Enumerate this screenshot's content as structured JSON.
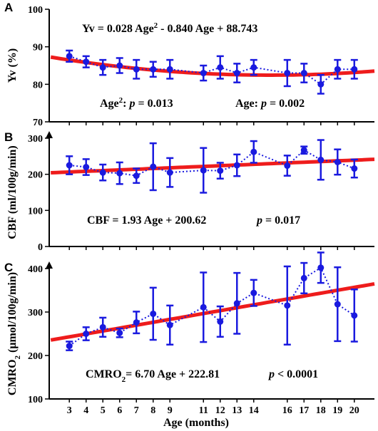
{
  "chart_data": [
    {
      "panel": "A",
      "type": "line",
      "ylabel": "Yv (%)",
      "ylim": [
        70,
        100
      ],
      "yticks": [
        70,
        80,
        90,
        100
      ],
      "x": [
        3,
        4,
        5,
        6,
        7,
        8,
        9,
        11,
        12,
        13,
        14,
        16,
        17,
        18,
        19,
        20
      ],
      "values": [
        87.5,
        86,
        84.5,
        85,
        84,
        84,
        84,
        83,
        84.5,
        83,
        84.5,
        83,
        83,
        80,
        84,
        84
      ],
      "err": [
        1.5,
        1.5,
        2,
        2,
        2.5,
        2,
        2.5,
        2,
        3,
        2.5,
        2,
        3.5,
        2.5,
        2.5,
        2.5,
        2.5
      ],
      "fit": {
        "a": 0.028,
        "b": -0.84,
        "c": 88.743
      },
      "equation_lines": [
        {
          "parts": [
            {
              "t": "Yv = 0.028 Age"
            },
            {
              "t": "2",
              "sup": true
            },
            {
              "t": " - 0.840 Age + 88.743"
            }
          ]
        },
        {
          "parts": [
            {
              "t": "Age"
            },
            {
              "t": "2",
              "sup": true
            },
            {
              "t": ": "
            },
            {
              "t": "p",
              "italic": true
            },
            {
              "t": " = 0.013"
            }
          ]
        },
        {
          "parts": [
            {
              "t": "Age: "
            },
            {
              "t": "p",
              "italic": true
            },
            {
              "t": " = 0.002"
            }
          ]
        }
      ]
    },
    {
      "panel": "B",
      "type": "line",
      "ylabel": "CBF (ml/100g/min)",
      "ylim": [
        0,
        300
      ],
      "yticks": [
        0,
        100,
        200,
        300
      ],
      "x": [
        3,
        4,
        5,
        6,
        7,
        8,
        9,
        11,
        12,
        13,
        14,
        16,
        17,
        18,
        19,
        20
      ],
      "values": [
        225,
        220,
        205,
        203,
        196,
        221,
        205,
        211,
        210,
        225,
        262,
        224,
        267,
        240,
        234,
        216
      ],
      "err": [
        25,
        22,
        22,
        30,
        20,
        65,
        40,
        62,
        22,
        30,
        30,
        28,
        10,
        55,
        35,
        25
      ],
      "fit": {
        "slope": 1.93,
        "intercept": 200.62
      },
      "equation_lines": [
        {
          "parts": [
            {
              "t": "CBF = 1.93 Age + 200.62"
            }
          ]
        },
        {
          "parts": [
            {
              "t": "p",
              "italic": true
            },
            {
              "t": " = 0.017"
            }
          ]
        }
      ]
    },
    {
      "panel": "C",
      "type": "line",
      "ylabel": "CMRO₂ (μmol/100g/min)",
      "ylim": [
        100,
        400
      ],
      "yticks": [
        100,
        200,
        300,
        400
      ],
      "x": [
        3,
        4,
        5,
        6,
        7,
        8,
        9,
        11,
        12,
        13,
        14,
        16,
        17,
        18,
        19,
        20
      ],
      "values": [
        222,
        250,
        265,
        252,
        276,
        296,
        270,
        311,
        278,
        320,
        344,
        315,
        378,
        402,
        318,
        292
      ],
      "err": [
        10,
        15,
        22,
        10,
        25,
        60,
        45,
        80,
        35,
        70,
        30,
        90,
        35,
        35,
        85,
        60
      ],
      "fit": {
        "slope": 6.7,
        "intercept": 222.81
      },
      "equation_lines": [
        {
          "parts": [
            {
              "t": "CMRO"
            },
            {
              "t": "2",
              "sub": true
            },
            {
              "t": "= 6.70 Age + 222.81"
            }
          ]
        },
        {
          "parts": [
            {
              "t": "p",
              "italic": true
            },
            {
              "t": " < 0.0001"
            }
          ]
        }
      ]
    }
  ],
  "xaxis": {
    "label": "Age (months)",
    "ticks": [
      3,
      4,
      5,
      6,
      7,
      8,
      9,
      11,
      12,
      13,
      14,
      16,
      17,
      18,
      19,
      20
    ],
    "min": 1.8,
    "max": 21.2
  },
  "colors": {
    "data": "#1a1adf",
    "fit": "#ee1c1c",
    "axis": "#000000"
  }
}
